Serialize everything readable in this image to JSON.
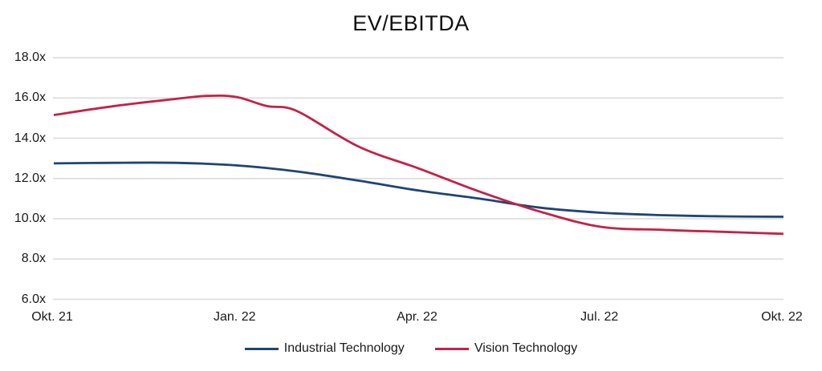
{
  "title": "EV/EBITDA",
  "colors": {
    "background": "#ffffff",
    "gridline": "#d9d9d9",
    "axis_text": "#1a1a1a",
    "title_text": "#111111",
    "industrial_technology": "#1f4571",
    "vision_technology": "#c32148"
  },
  "chart_data": {
    "type": "line",
    "title": "EV/EBITDA",
    "xlabel": "",
    "ylabel": "",
    "grid": "horizontal",
    "legend_position": "bottom",
    "y_axis": {
      "unit": "x",
      "range": [
        6,
        18
      ],
      "tick_values": [
        6,
        8,
        10,
        12,
        14,
        16,
        18
      ],
      "tick_labels": [
        "6.0x",
        "8.0x",
        "10.0x",
        "12.0x",
        "14.0x",
        "16.0x",
        "18.0x"
      ]
    },
    "x_axis": {
      "range_months": [
        0,
        12
      ],
      "tick_months": [
        0,
        3,
        6,
        9,
        12
      ],
      "tick_labels": [
        "Okt. 21",
        "Jan. 22",
        "Apr. 22",
        "Jul. 22",
        "Okt. 22"
      ]
    },
    "series": [
      {
        "name": "Industrial Technology",
        "color": "#1f4571",
        "x_months": [
          0,
          1,
          2,
          3,
          4,
          5,
          6,
          7,
          8,
          9,
          10,
          11,
          12
        ],
        "values": [
          12.75,
          12.78,
          12.78,
          12.65,
          12.35,
          11.9,
          11.4,
          11.0,
          10.55,
          10.3,
          10.18,
          10.12,
          10.1
        ]
      },
      {
        "name": "Vision Technology",
        "color": "#c32148",
        "x_months": [
          0,
          1,
          2,
          2.5,
          3,
          3.5,
          4,
          5,
          6,
          7,
          8,
          9,
          10,
          11,
          12
        ],
        "values": [
          15.15,
          15.6,
          15.95,
          16.1,
          16.05,
          15.6,
          15.35,
          13.6,
          12.5,
          11.35,
          10.35,
          9.6,
          9.45,
          9.35,
          9.25
        ]
      }
    ]
  }
}
